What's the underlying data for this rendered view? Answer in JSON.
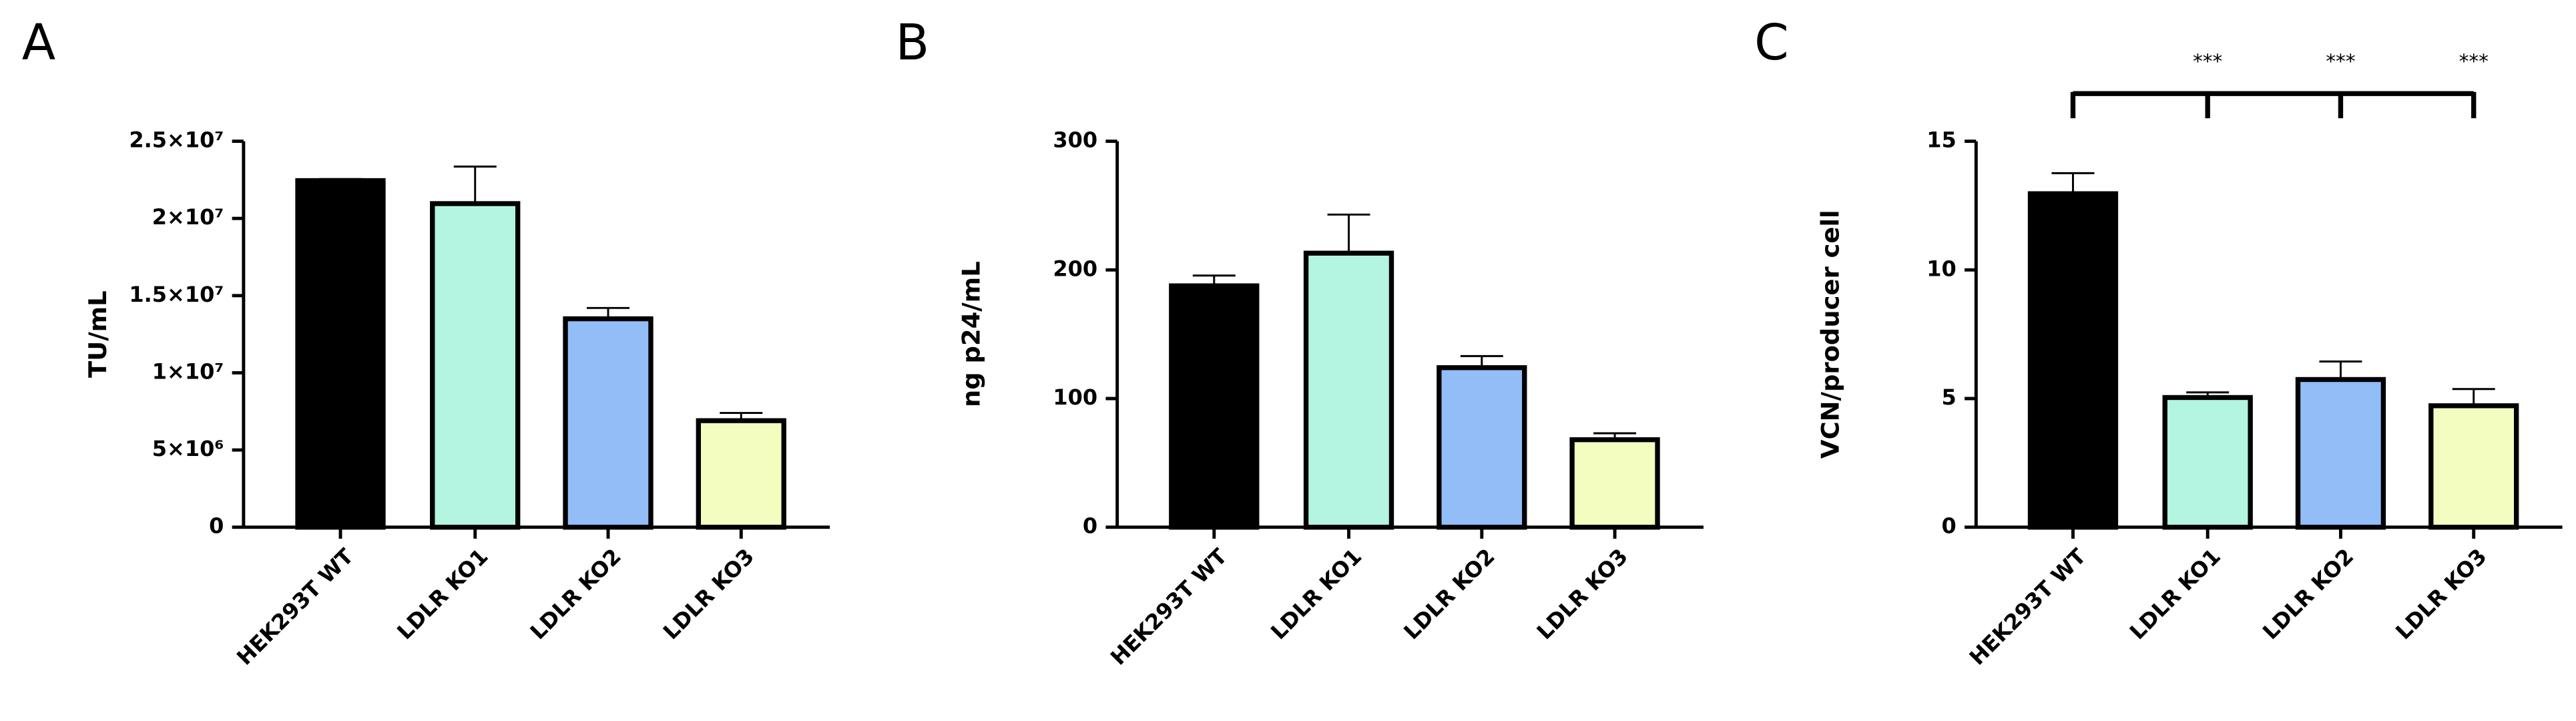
{
  "chart_data": [
    {
      "type": "bar",
      "panel": "A",
      "ylabel": "TU/mL",
      "categories": [
        "HEK293T WT",
        "LDLR KO1",
        "LDLR KO2",
        "LDLR KO3"
      ],
      "values": [
        22450000,
        20960000,
        13500000,
        6900000
      ],
      "errors": [
        100000,
        2400000,
        700000,
        500000
      ],
      "colors": [
        "#000000",
        "#b3f5e0",
        "#92bdf7",
        "#f3fdc0"
      ],
      "ylim": [
        0,
        25000000
      ],
      "yticks": [
        0,
        {
          "value": 5000000,
          "label": "5×10⁶"
        },
        {
          "value": 10000000,
          "label": "1×10⁷"
        },
        {
          "value": 15000000,
          "label": "1.5×10⁷"
        },
        {
          "value": 20000000,
          "label": "2×10⁷"
        },
        {
          "value": 25000000,
          "label": "2.5×10⁷"
        }
      ]
    },
    {
      "type": "bar",
      "panel": "B",
      "ylabel": "ng p24/mL",
      "categories": [
        "HEK293T WT",
        "LDLR KO1",
        "LDLR KO2",
        "LDLR KO3"
      ],
      "values": [
        187.6,
        213,
        124,
        68
      ],
      "errors": [
        8,
        30,
        9,
        5
      ],
      "colors": [
        "#000000",
        "#b3f5e0",
        "#92bdf7",
        "#f3fdc0"
      ],
      "ylim": [
        0,
        300
      ],
      "yticks": [
        0,
        100,
        200,
        300
      ]
    },
    {
      "type": "bar",
      "panel": "C",
      "ylabel": "VCN/producer cell",
      "categories": [
        "HEK293T WT",
        "LDLR KO1",
        "LDLR KO2",
        "LDLR KO3"
      ],
      "values": [
        12.96,
        5.04,
        5.74,
        4.72
      ],
      "errors": [
        0.8,
        0.2,
        0.7,
        0.65
      ],
      "colors": [
        "#000000",
        "#b3f5e0",
        "#92bdf7",
        "#f3fdc0"
      ],
      "ylim": [
        0,
        15
      ],
      "yticks": [
        0,
        5,
        10,
        15
      ],
      "significance": [
        null,
        "***",
        "***",
        "***"
      ]
    }
  ]
}
